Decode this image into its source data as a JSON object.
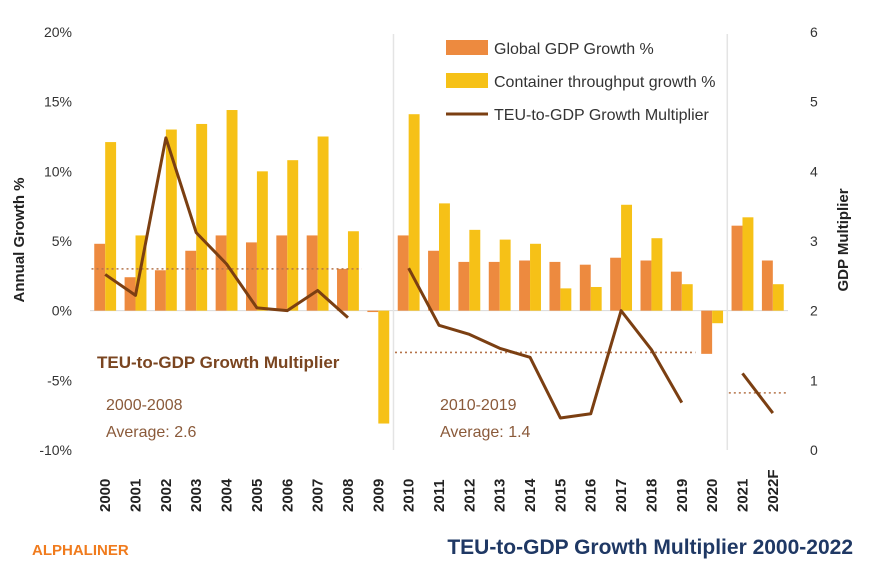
{
  "brand": "ALPHALINER",
  "title": "TEU-to-GDP Growth Multiplier 2000-2022",
  "colors": {
    "gdp_bar": "#ed8a3f",
    "teu_bar": "#f6c117",
    "multiplier_line": "#7b3f12",
    "avg_line": "#b5744a"
  },
  "annotations": {
    "title": "TEU-to-GDP Growth Multiplier",
    "period1": "2000-2008",
    "avg1": "Average: 2.6",
    "period2": "2010-2019",
    "avg2": "Average: 1.4"
  },
  "chart_data": {
    "type": "bar",
    "title": "TEU-to-GDP Growth Multiplier 2000-2022",
    "ylabel": "Annual Growth %",
    "y2label": "GDP Multiplier",
    "ylim": [
      -10,
      20
    ],
    "y2lim": [
      0,
      6
    ],
    "yticks": [
      "-10%",
      "-5%",
      "0%",
      "5%",
      "10%",
      "15%",
      "20%"
    ],
    "y2ticks": [
      "0",
      "1",
      "2",
      "3",
      "4",
      "5",
      "6"
    ],
    "categories": [
      "2000",
      "2001",
      "2002",
      "2003",
      "2004",
      "2005",
      "2006",
      "2007",
      "2008",
      "2009",
      "2010",
      "2011",
      "2012",
      "2013",
      "2014",
      "2015",
      "2016",
      "2017",
      "2018",
      "2019",
      "2020",
      "2021",
      "2022F"
    ],
    "series": [
      {
        "name": "Global GDP Growth %",
        "type": "bar",
        "axis": "left",
        "values": [
          4.8,
          2.4,
          2.9,
          4.3,
          5.4,
          4.9,
          5.4,
          5.4,
          3.0,
          -0.1,
          5.4,
          4.3,
          3.5,
          3.5,
          3.6,
          3.5,
          3.3,
          3.8,
          3.6,
          2.8,
          -3.1,
          6.1,
          3.6
        ]
      },
      {
        "name": "Container throughput growth %",
        "type": "bar",
        "axis": "left",
        "values": [
          12.1,
          5.4,
          13.0,
          13.4,
          14.4,
          10.0,
          10.8,
          12.5,
          5.7,
          -8.1,
          14.1,
          7.7,
          5.8,
          5.1,
          4.8,
          1.6,
          1.7,
          7.6,
          5.2,
          1.9,
          -0.9,
          6.7,
          1.9
        ]
      },
      {
        "name": "TEU-to-GDP Growth Multiplier",
        "type": "line",
        "axis": "right",
        "segments": [
          {
            "categories": [
              "2000",
              "2001",
              "2002",
              "2003",
              "2004",
              "2005",
              "2006",
              "2007",
              "2008"
            ],
            "values": [
              2.52,
              2.22,
              4.48,
              3.12,
              2.67,
              2.04,
              2.0,
              2.29,
              1.9
            ]
          },
          {
            "categories": [
              "2010",
              "2011",
              "2012",
              "2013",
              "2014",
              "2015",
              "2016",
              "2017",
              "2018",
              "2019"
            ],
            "values": [
              2.61,
              1.79,
              1.66,
              1.46,
              1.33,
              0.46,
              0.52,
              2.0,
              1.44,
              0.68
            ]
          },
          {
            "categories": [
              "2021",
              "2022F"
            ],
            "values": [
              1.1,
              0.53
            ]
          }
        ]
      }
    ],
    "averages": [
      {
        "period": "2000-2008",
        "value": 2.6,
        "from": "2000",
        "to": "2008"
      },
      {
        "period": "2010-2019",
        "value": 1.4,
        "from": "2010",
        "to": "2019"
      },
      {
        "value": 0.82,
        "from": "2021",
        "to": "2022F"
      }
    ],
    "dividers_after": [
      "2009",
      "2020"
    ],
    "legend_position": "top-right",
    "grid": false
  }
}
